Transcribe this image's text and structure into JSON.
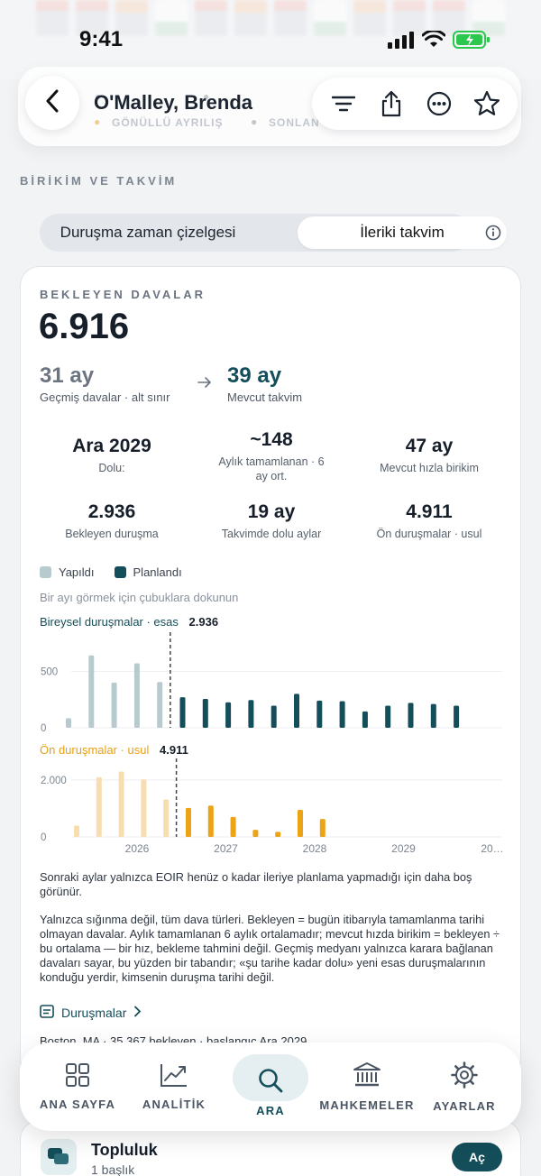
{
  "status": {
    "time": "9:41"
  },
  "header": {
    "title": "O'Malley, Brenda",
    "ghost_labels": [
      "GÖNÜLLÜ AYRILIŞ",
      "SONLAN"
    ]
  },
  "section_label": "BİRİKİM VE TAKVİM",
  "segmented": {
    "options": [
      "Duruşma zaman çizelgesi",
      "İleriki takvim"
    ],
    "selected": "İleriki takvim"
  },
  "card": {
    "kicker": "BEKLEYEN DAVALAR",
    "total": "6.916",
    "compare": {
      "from_value": "31 ay",
      "from_label": "Geçmiş davalar · alt sınır",
      "to_value": "39 ay",
      "to_label": "Mevcut takvim"
    },
    "stats": [
      {
        "value": "Ara 2029",
        "label": "Dolu:"
      },
      {
        "value": "~148",
        "label": "Aylık tamamlanan · 6 ay ort."
      },
      {
        "value": "47 ay",
        "label": "Mevcut hızla birikim"
      },
      {
        "value": "2.936",
        "label": "Bekleyen duruşma"
      },
      {
        "value": "19 ay",
        "label": "Takvimde dolu aylar"
      },
      {
        "value": "4.911",
        "label": "Ön duruşmalar · usul"
      }
    ],
    "legend": {
      "done": "Yapıldı",
      "planned": "Planlandı"
    },
    "hint": "Bir ayı görmek için çubuklara dokunun",
    "note1": "Sonraki aylar yalnızca EOIR henüz o kadar ileriye planlama yapmadığı için daha boş görünür.",
    "note2": "Yalnızca sığınma değil, tüm dava türleri. Bekleyen = bugün itibarıyla tamamlanma tarihi olmayan davalar. Aylık tamamlanan 6 aylık ortalamadır; mevcut hızda birikim = bekleyen ÷ bu ortalama — bir hız, bekleme tahmini değil. Geçmiş medyanı yalnızca karara bağlanan davaları sayar, bu yüzden bir tabandır; «şu tarihe kadar dolu» yeni esas duruşmalarının konduğu yerdir, kimsenin duruşma tarihi değil.",
    "link": "Duruşmalar",
    "cut_text": "Boston, MA · 35.367 bekleyen · başlangıç Ara 2029"
  },
  "chart_data": [
    {
      "type": "bar",
      "title": "Bireysel duruşmalar · esas",
      "total_label": "2.936",
      "ylim": [
        0,
        750
      ],
      "yticks": [
        0,
        500
      ],
      "series": [
        {
          "name": "Yapıldı",
          "color": "#b7cacd",
          "values": [
            85,
            640,
            400,
            570,
            405
          ]
        },
        {
          "name": "Planlandı",
          "color": "#134e5a",
          "values": [
            270,
            255,
            225,
            245,
            195,
            300,
            240,
            235,
            145,
            195,
            220,
            210,
            195
          ]
        }
      ]
    },
    {
      "type": "bar",
      "title": "Ön duruşmalar · usul",
      "total_label": "4.911",
      "ylim": [
        0,
        2600
      ],
      "yticks": [
        0,
        2000
      ],
      "xticks": [
        "2026",
        "2027",
        "2028",
        "2029",
        "20…"
      ],
      "series": [
        {
          "name": "Yapıldı",
          "color": "#f8ddb0",
          "values": [
            400,
            2100,
            2300,
            2020,
            1320
          ]
        },
        {
          "name": "Planlandı",
          "color": "#eca316",
          "values": [
            1020,
            1100,
            700,
            250,
            180,
            950,
            630
          ]
        }
      ]
    }
  ],
  "tabbar": {
    "tabs": [
      {
        "label": "ANA SAYFA",
        "icon": "grid-icon"
      },
      {
        "label": "ANALİTİK",
        "icon": "chart-icon"
      },
      {
        "label": "ARA",
        "icon": "search-icon"
      },
      {
        "label": "MAHKEMELER",
        "icon": "courthouse-icon"
      },
      {
        "label": "AYARLAR",
        "icon": "gear-icon"
      }
    ],
    "active": "ARA"
  },
  "community": {
    "title": "Topluluk",
    "subtitle": "1 başlık",
    "button": "Aç"
  },
  "colors": {
    "accent": "#134e5a",
    "orange": "#eca316",
    "done_teal": "#b7cacd",
    "done_orange": "#f8ddb0"
  }
}
